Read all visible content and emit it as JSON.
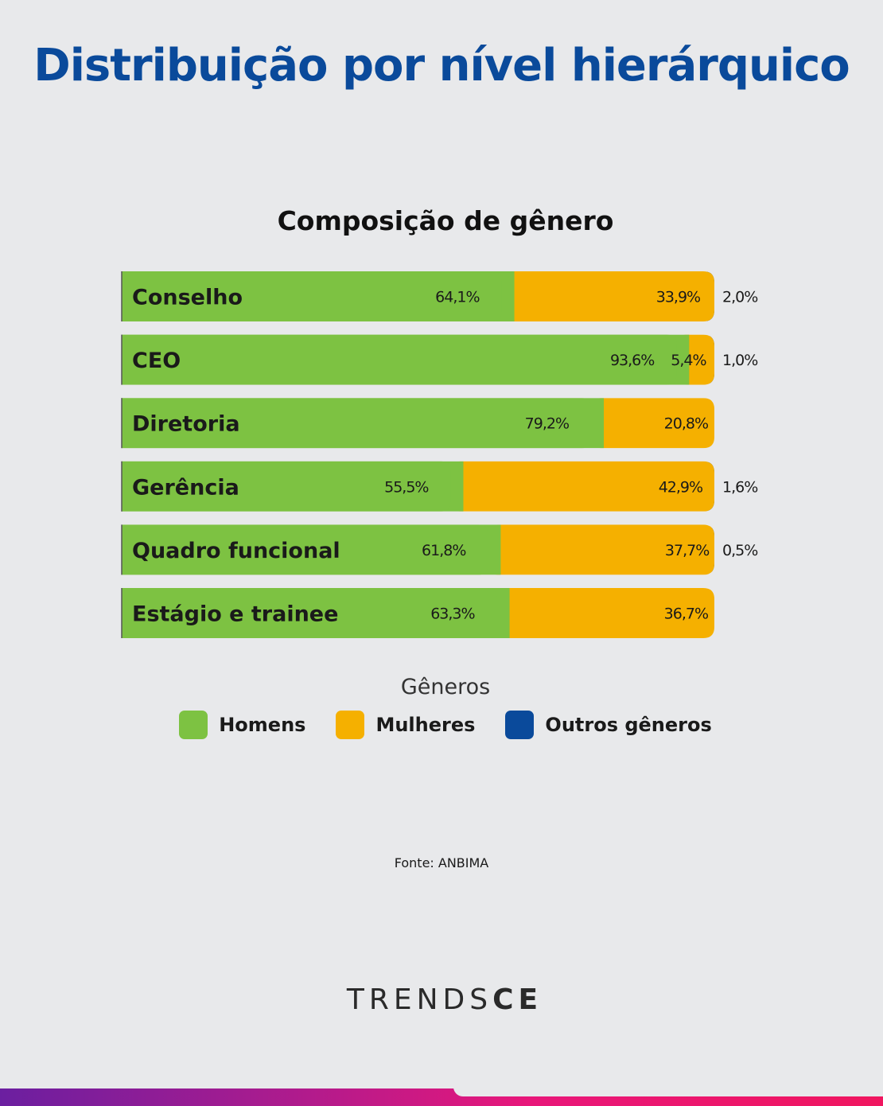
{
  "title": "Distribuição por nível hierárquico",
  "chart_data": {
    "type": "bar",
    "orientation": "horizontal-stacked",
    "title": "Composição de gênero",
    "categories": [
      "Conselho",
      "CEO",
      "Diretoria",
      "Gerência",
      "Quadro funcional",
      "Estágio e trainee"
    ],
    "series": [
      {
        "name": "Homens",
        "color": "#7dc242",
        "values": [
          64.1,
          93.6,
          79.2,
          55.5,
          61.8,
          63.3
        ],
        "labels": [
          "64,1%",
          "93,6%",
          "79,2%",
          "55,5%",
          "61,8%",
          "63,3%"
        ]
      },
      {
        "name": "Mulheres",
        "color": "#f5b000",
        "values": [
          33.9,
          5.4,
          20.8,
          42.9,
          37.7,
          36.7
        ],
        "labels": [
          "33,9%",
          "5,4%",
          "20,8%",
          "42,9%",
          "37,7%",
          "36,7%"
        ]
      },
      {
        "name": "Outros gêneros",
        "color": "#0a4a9b",
        "values": [
          2.0,
          1.0,
          0,
          1.6,
          0.5,
          0
        ],
        "labels": [
          "2,0%",
          "1,0%",
          "",
          "1,6%",
          "0,5%",
          ""
        ]
      }
    ],
    "xlim": [
      0,
      100
    ],
    "legend_title": "Gêneros"
  },
  "legend": {
    "title": "Gêneros",
    "items": [
      {
        "label": "Homens",
        "color": "#7dc242"
      },
      {
        "label": "Mulheres",
        "color": "#f5b000"
      },
      {
        "label": "Outros gêneros",
        "color": "#0a4a9b"
      }
    ]
  },
  "source": "Fonte: ANBIMA",
  "brand": {
    "part1": "TRENDS",
    "part2": "CE"
  }
}
